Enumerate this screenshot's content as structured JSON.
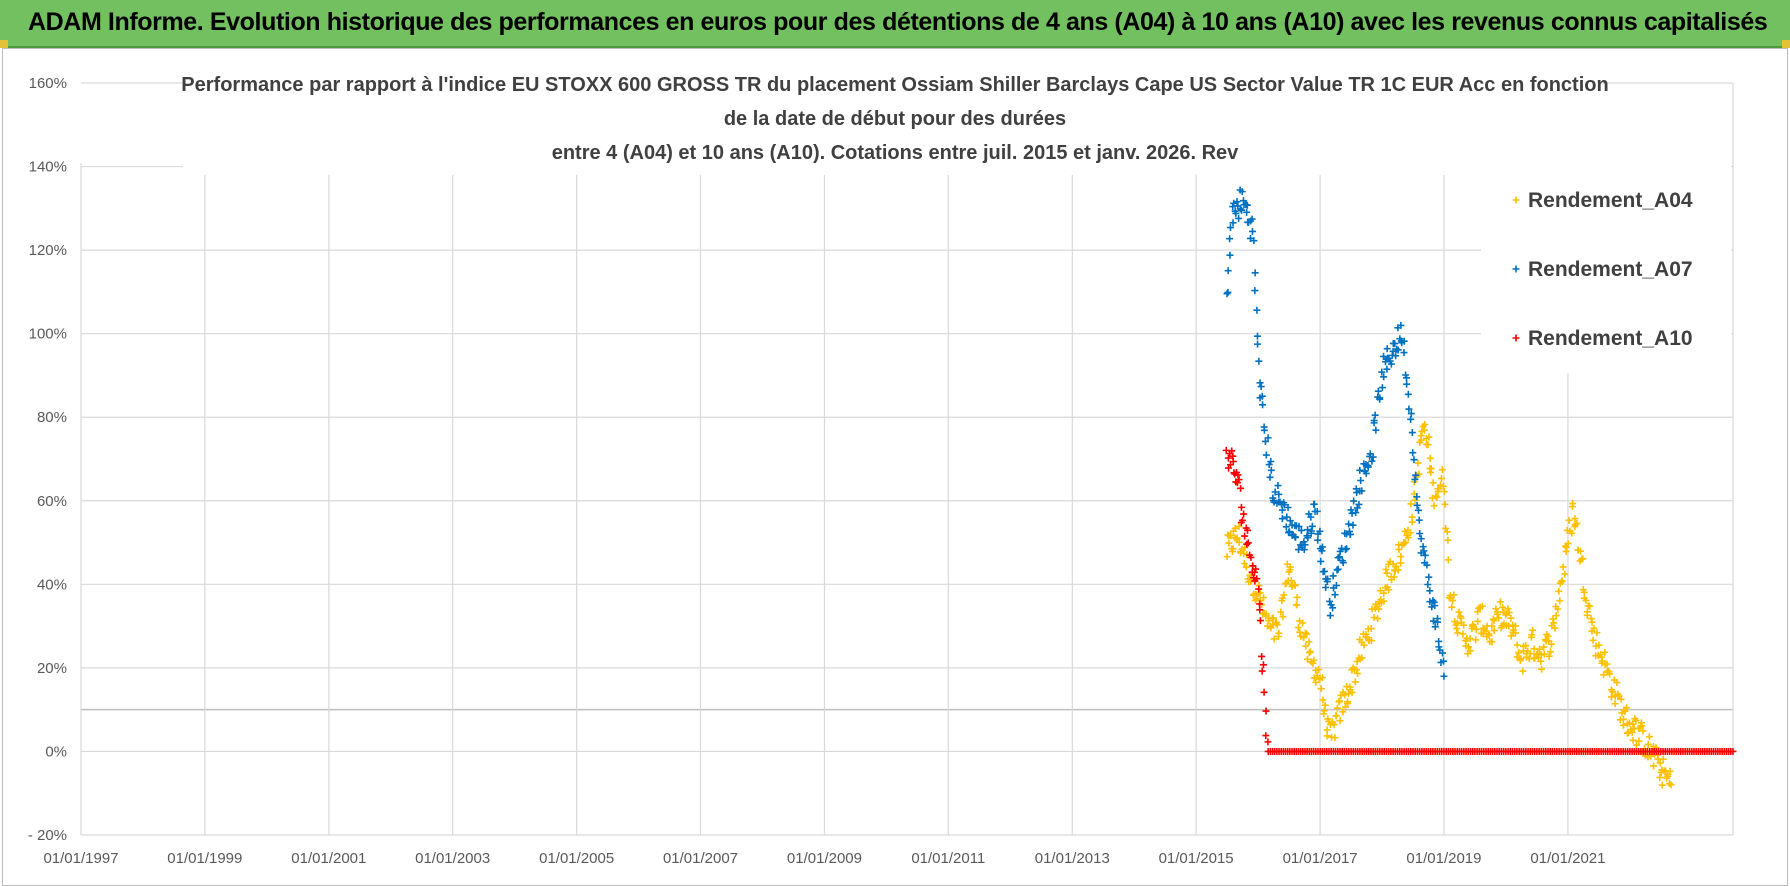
{
  "banner": {
    "text": "ADAM Informe. Evolution historique des performances en euros pour des détentions de 4 ans (A04) à 10 ans (A10) avec les revenus connus capitalisés"
  },
  "colors": {
    "banner_bg": "#72c05f",
    "A04": "#ffc000",
    "A07": "#0070c0",
    "A10": "#ff0000",
    "grid": "#d9d9d9"
  },
  "chart_data": {
    "type": "scatter",
    "title": [
      "Performance par rapport à l'indice EU STOXX 600 GROSS TR  du placement Ossiam Shiller Barclays Cape US Sector Value TR 1C EUR Acc en fonction",
      "de la date de début pour des durées",
      "entre 4 (A04) et 10 ans (A10). Cotations entre juil. 2015 et janv. 2026. Rev"
    ],
    "xlabel": "",
    "ylabel": "",
    "x_ticks": [
      "01/01/1997",
      "01/01/1999",
      "01/01/2001",
      "01/01/2003",
      "01/01/2005",
      "01/01/2007",
      "01/01/2009",
      "01/01/2011",
      "01/01/2013",
      "01/01/2015",
      "01/01/2017",
      "01/01/2019",
      "01/01/2021"
    ],
    "xlim": [
      "1997-01-01",
      "2023-09-01"
    ],
    "y_ticks": [
      "160%",
      "140%",
      "120%",
      "100%",
      "80%",
      "60%",
      "40%",
      "20%",
      "0%",
      "- 20%"
    ],
    "ylim": [
      -20,
      160
    ],
    "grid": true,
    "legend_position": "top-right",
    "marker": "+",
    "series": [
      {
        "name": "Rendement_A04",
        "color": "#ffc000",
        "points": [
          [
            "2015-07-01",
            48
          ],
          [
            "2015-09-01",
            52
          ],
          [
            "2015-11-01",
            44
          ],
          [
            "2016-01-01",
            38
          ],
          [
            "2016-03-01",
            30
          ],
          [
            "2016-05-01",
            28
          ],
          [
            "2016-07-01",
            45
          ],
          [
            "2016-09-01",
            32
          ],
          [
            "2016-11-01",
            22
          ],
          [
            "2017-01-01",
            18
          ],
          [
            "2017-02-01",
            8
          ],
          [
            "2017-03-01",
            3
          ],
          [
            "2017-05-01",
            10
          ],
          [
            "2017-07-01",
            16
          ],
          [
            "2017-09-01",
            24
          ],
          [
            "2017-11-01",
            30
          ],
          [
            "2018-01-01",
            38
          ],
          [
            "2018-03-01",
            44
          ],
          [
            "2018-05-01",
            48
          ],
          [
            "2018-07-01",
            58
          ],
          [
            "2018-09-01",
            78
          ],
          [
            "2018-10-01",
            72
          ],
          [
            "2018-11-01",
            62
          ],
          [
            "2019-01-01",
            65
          ],
          [
            "2019-02-01",
            40
          ],
          [
            "2019-04-01",
            30
          ],
          [
            "2019-06-01",
            26
          ],
          [
            "2019-08-01",
            32
          ],
          [
            "2019-10-01",
            28
          ],
          [
            "2019-12-01",
            33
          ],
          [
            "2020-02-01",
            30
          ],
          [
            "2020-04-01",
            22
          ],
          [
            "2020-06-01",
            26
          ],
          [
            "2020-08-01",
            23
          ],
          [
            "2020-10-01",
            28
          ],
          [
            "2021-01-01",
            50
          ],
          [
            "2021-02-01",
            58
          ],
          [
            "2021-04-01",
            42
          ],
          [
            "2021-06-01",
            28
          ],
          [
            "2021-09-01",
            18
          ],
          [
            "2021-12-01",
            8
          ],
          [
            "2022-03-01",
            4
          ],
          [
            "2022-06-01",
            -2
          ],
          [
            "2022-09-01",
            -8
          ]
        ]
      },
      {
        "name": "Rendement_A07",
        "color": "#0070c0",
        "points": [
          [
            "2015-07-01",
            110
          ],
          [
            "2015-08-01",
            128
          ],
          [
            "2015-10-01",
            132
          ],
          [
            "2015-12-01",
            125
          ],
          [
            "2016-01-01",
            95
          ],
          [
            "2016-02-01",
            80
          ],
          [
            "2016-04-01",
            62
          ],
          [
            "2016-06-01",
            58
          ],
          [
            "2016-08-01",
            52
          ],
          [
            "2016-10-01",
            50
          ],
          [
            "2016-12-01",
            58
          ],
          [
            "2017-02-01",
            42
          ],
          [
            "2017-03-01",
            36
          ],
          [
            "2017-05-01",
            46
          ],
          [
            "2017-07-01",
            55
          ],
          [
            "2017-09-01",
            65
          ],
          [
            "2017-11-01",
            72
          ],
          [
            "2018-01-01",
            90
          ],
          [
            "2018-03-01",
            96
          ],
          [
            "2018-05-01",
            100
          ],
          [
            "2018-07-01",
            75
          ],
          [
            "2018-08-01",
            55
          ],
          [
            "2018-10-01",
            40
          ],
          [
            "2018-12-01",
            28
          ],
          [
            "2019-01-01",
            18
          ]
        ]
      },
      {
        "name": "Rendement_A10",
        "color": "#ff0000",
        "points": [
          [
            "2015-07-01",
            72
          ],
          [
            "2015-09-01",
            65
          ],
          [
            "2015-11-01",
            50
          ],
          [
            "2016-01-01",
            40
          ],
          [
            "2016-03-01",
            0
          ],
          [
            "2017-01-01",
            0
          ],
          [
            "2018-01-01",
            0
          ],
          [
            "2019-01-01",
            0
          ],
          [
            "2020-01-01",
            0
          ],
          [
            "2021-01-01",
            0
          ],
          [
            "2022-01-01",
            0
          ],
          [
            "2023-01-01",
            0
          ],
          [
            "2023-09-01",
            0
          ]
        ]
      }
    ]
  }
}
